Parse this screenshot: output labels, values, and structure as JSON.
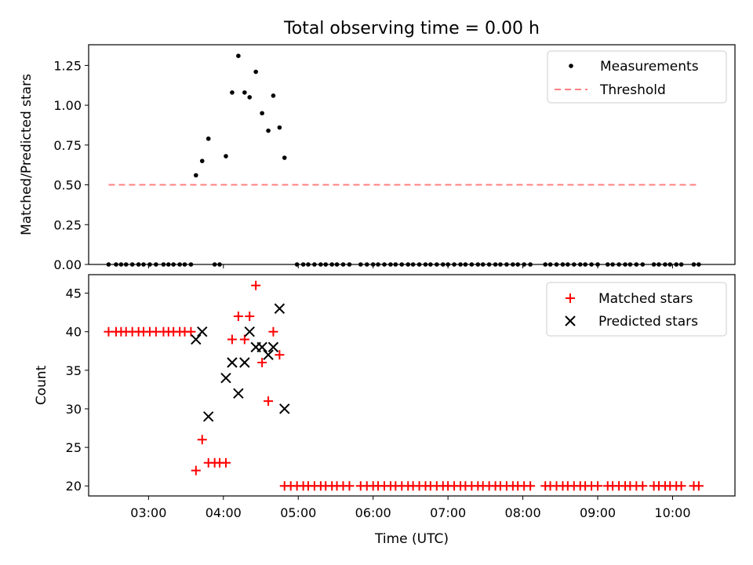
{
  "title": "Total observing time = 0.00 h",
  "chart_data": [
    {
      "type": "scatter",
      "ylabel": "Matched/Predicted stars",
      "xlabel": "",
      "xlim": [
        "02:12",
        "10:50"
      ],
      "ylim": [
        0,
        1.38
      ],
      "yticks": [
        "0.00",
        "0.25",
        "0.50",
        "0.75",
        "1.00",
        "1.25"
      ],
      "yticks_values": [
        0,
        0.25,
        0.5,
        0.75,
        1.0,
        1.25
      ],
      "legend_position": "upper right",
      "legend": [
        "Measurements",
        "Threshold"
      ],
      "series": [
        {
          "name": "Measurements",
          "marker": "dot",
          "color": "#000000",
          "points": [
            [
              "02:28",
              0
            ],
            [
              "02:34",
              0
            ],
            [
              "02:38",
              0
            ],
            [
              "02:42",
              0
            ],
            [
              "02:47",
              0
            ],
            [
              "02:52",
              0
            ],
            [
              "02:56",
              0
            ],
            [
              "03:01",
              0
            ],
            [
              "03:06",
              0
            ],
            [
              "03:12",
              0
            ],
            [
              "03:16",
              0
            ],
            [
              "03:20",
              0
            ],
            [
              "03:25",
              0
            ],
            [
              "03:29",
              0
            ],
            [
              "03:34",
              0
            ],
            [
              "03:38",
              0.56
            ],
            [
              "03:43",
              0.65
            ],
            [
              "03:48",
              0.79
            ],
            [
              "03:53",
              0
            ],
            [
              "03:57",
              0
            ],
            [
              "04:02",
              0.68
            ],
            [
              "04:07",
              1.08
            ],
            [
              "04:12",
              1.31
            ],
            [
              "04:17",
              1.08
            ],
            [
              "04:21",
              1.05
            ],
            [
              "04:26",
              1.21
            ],
            [
              "04:31",
              0.95
            ],
            [
              "04:36",
              0.84
            ],
            [
              "04:40",
              1.06
            ],
            [
              "04:45",
              0.86
            ],
            [
              "04:49",
              0.67
            ],
            [
              "04:59",
              0
            ],
            [
              "05:04",
              0
            ],
            [
              "05:08",
              0
            ],
            [
              "05:13",
              0
            ],
            [
              "05:18",
              0
            ],
            [
              "05:22",
              0
            ],
            [
              "05:27",
              0
            ],
            [
              "05:31",
              0
            ],
            [
              "05:36",
              0
            ],
            [
              "05:41",
              0
            ],
            [
              "05:50",
              0
            ],
            [
              "05:55",
              0
            ],
            [
              "06:00",
              0
            ],
            [
              "06:04",
              0
            ],
            [
              "06:09",
              0
            ],
            [
              "06:14",
              0
            ],
            [
              "06:18",
              0
            ],
            [
              "06:23",
              0
            ],
            [
              "06:28",
              0
            ],
            [
              "06:32",
              0
            ],
            [
              "06:37",
              0
            ],
            [
              "06:42",
              0
            ],
            [
              "06:46",
              0
            ],
            [
              "06:51",
              0
            ],
            [
              "06:56",
              0
            ],
            [
              "07:00",
              0
            ],
            [
              "07:05",
              0
            ],
            [
              "07:10",
              0
            ],
            [
              "07:14",
              0
            ],
            [
              "07:19",
              0
            ],
            [
              "07:24",
              0
            ],
            [
              "07:28",
              0
            ],
            [
              "07:33",
              0
            ],
            [
              "07:38",
              0
            ],
            [
              "07:42",
              0
            ],
            [
              "07:47",
              0
            ],
            [
              "07:52",
              0
            ],
            [
              "07:56",
              0
            ],
            [
              "08:01",
              0
            ],
            [
              "08:06",
              0
            ],
            [
              "08:18",
              0
            ],
            [
              "08:22",
              0
            ],
            [
              "08:27",
              0
            ],
            [
              "08:32",
              0
            ],
            [
              "08:36",
              0
            ],
            [
              "08:41",
              0
            ],
            [
              "08:46",
              0
            ],
            [
              "08:50",
              0
            ],
            [
              "08:55",
              0
            ],
            [
              "09:00",
              0
            ],
            [
              "09:08",
              0
            ],
            [
              "09:12",
              0
            ],
            [
              "09:17",
              0
            ],
            [
              "09:22",
              0
            ],
            [
              "09:26",
              0
            ],
            [
              "09:31",
              0
            ],
            [
              "09:36",
              0
            ],
            [
              "09:45",
              0
            ],
            [
              "09:49",
              0
            ],
            [
              "09:54",
              0
            ],
            [
              "09:58",
              0
            ],
            [
              "10:03",
              0
            ],
            [
              "10:07",
              0
            ],
            [
              "10:17",
              0
            ],
            [
              "10:21",
              0
            ]
          ]
        },
        {
          "name": "Threshold",
          "type": "line",
          "style": "dashed",
          "color": "#ff7f7f",
          "points": [
            [
              "02:28",
              0.5
            ],
            [
              "10:21",
              0.5
            ]
          ]
        }
      ]
    },
    {
      "type": "scatter",
      "ylabel": "Count",
      "xlabel": "Time (UTC)",
      "xlim": [
        "02:12",
        "10:50"
      ],
      "ylim": [
        18.7,
        47.4
      ],
      "yticks": [
        "20",
        "25",
        "30",
        "35",
        "40",
        "45"
      ],
      "yticks_values": [
        20,
        25,
        30,
        35,
        40,
        45
      ],
      "xticks": [
        "03:00",
        "04:00",
        "05:00",
        "06:00",
        "07:00",
        "08:00",
        "09:00",
        "10:00"
      ],
      "legend_position": "upper right",
      "legend": [
        "Matched stars",
        "Predicted stars"
      ],
      "series": [
        {
          "name": "Matched stars",
          "marker": "plus",
          "color": "#ff0000",
          "points": [
            [
              "02:28",
              40
            ],
            [
              "02:34",
              40
            ],
            [
              "02:38",
              40
            ],
            [
              "02:42",
              40
            ],
            [
              "02:47",
              40
            ],
            [
              "02:52",
              40
            ],
            [
              "02:56",
              40
            ],
            [
              "03:01",
              40
            ],
            [
              "03:06",
              40
            ],
            [
              "03:12",
              40
            ],
            [
              "03:16",
              40
            ],
            [
              "03:20",
              40
            ],
            [
              "03:25",
              40
            ],
            [
              "03:29",
              40
            ],
            [
              "03:34",
              40
            ],
            [
              "03:38",
              22
            ],
            [
              "03:43",
              26
            ],
            [
              "03:48",
              23
            ],
            [
              "03:53",
              23
            ],
            [
              "03:57",
              23
            ],
            [
              "04:02",
              23
            ],
            [
              "04:07",
              39
            ],
            [
              "04:12",
              42
            ],
            [
              "04:17",
              39
            ],
            [
              "04:21",
              42
            ],
            [
              "04:26",
              46
            ],
            [
              "04:31",
              36
            ],
            [
              "04:36",
              31
            ],
            [
              "04:40",
              40
            ],
            [
              "04:45",
              37
            ],
            [
              "04:49",
              20
            ],
            [
              "04:54",
              20
            ],
            [
              "04:59",
              20
            ],
            [
              "05:04",
              20
            ],
            [
              "05:08",
              20
            ],
            [
              "05:13",
              20
            ],
            [
              "05:18",
              20
            ],
            [
              "05:22",
              20
            ],
            [
              "05:27",
              20
            ],
            [
              "05:31",
              20
            ],
            [
              "05:36",
              20
            ],
            [
              "05:41",
              20
            ],
            [
              "05:50",
              20
            ],
            [
              "05:55",
              20
            ],
            [
              "06:00",
              20
            ],
            [
              "06:04",
              20
            ],
            [
              "06:09",
              20
            ],
            [
              "06:14",
              20
            ],
            [
              "06:18",
              20
            ],
            [
              "06:23",
              20
            ],
            [
              "06:28",
              20
            ],
            [
              "06:32",
              20
            ],
            [
              "06:37",
              20
            ],
            [
              "06:42",
              20
            ],
            [
              "06:46",
              20
            ],
            [
              "06:51",
              20
            ],
            [
              "06:56",
              20
            ],
            [
              "07:00",
              20
            ],
            [
              "07:05",
              20
            ],
            [
              "07:10",
              20
            ],
            [
              "07:14",
              20
            ],
            [
              "07:19",
              20
            ],
            [
              "07:24",
              20
            ],
            [
              "07:28",
              20
            ],
            [
              "07:33",
              20
            ],
            [
              "07:38",
              20
            ],
            [
              "07:42",
              20
            ],
            [
              "07:47",
              20
            ],
            [
              "07:52",
              20
            ],
            [
              "07:56",
              20
            ],
            [
              "08:01",
              20
            ],
            [
              "08:06",
              20
            ],
            [
              "08:18",
              20
            ],
            [
              "08:22",
              20
            ],
            [
              "08:27",
              20
            ],
            [
              "08:32",
              20
            ],
            [
              "08:36",
              20
            ],
            [
              "08:41",
              20
            ],
            [
              "08:46",
              20
            ],
            [
              "08:50",
              20
            ],
            [
              "08:55",
              20
            ],
            [
              "09:00",
              20
            ],
            [
              "09:08",
              20
            ],
            [
              "09:12",
              20
            ],
            [
              "09:17",
              20
            ],
            [
              "09:22",
              20
            ],
            [
              "09:26",
              20
            ],
            [
              "09:31",
              20
            ],
            [
              "09:36",
              20
            ],
            [
              "09:45",
              20
            ],
            [
              "09:49",
              20
            ],
            [
              "09:54",
              20
            ],
            [
              "09:58",
              20
            ],
            [
              "10:03",
              20
            ],
            [
              "10:07",
              20
            ],
            [
              "10:17",
              20
            ],
            [
              "10:21",
              20
            ]
          ]
        },
        {
          "name": "Predicted stars",
          "marker": "x",
          "color": "#000000",
          "points": [
            [
              "03:38",
              39
            ],
            [
              "03:43",
              40
            ],
            [
              "03:48",
              29
            ],
            [
              "04:02",
              34
            ],
            [
              "04:07",
              36
            ],
            [
              "04:12",
              32
            ],
            [
              "04:17",
              36
            ],
            [
              "04:21",
              40
            ],
            [
              "04:26",
              38
            ],
            [
              "04:31",
              38
            ],
            [
              "04:36",
              37
            ],
            [
              "04:40",
              38
            ],
            [
              "04:45",
              43
            ],
            [
              "04:49",
              30
            ]
          ]
        }
      ]
    }
  ]
}
